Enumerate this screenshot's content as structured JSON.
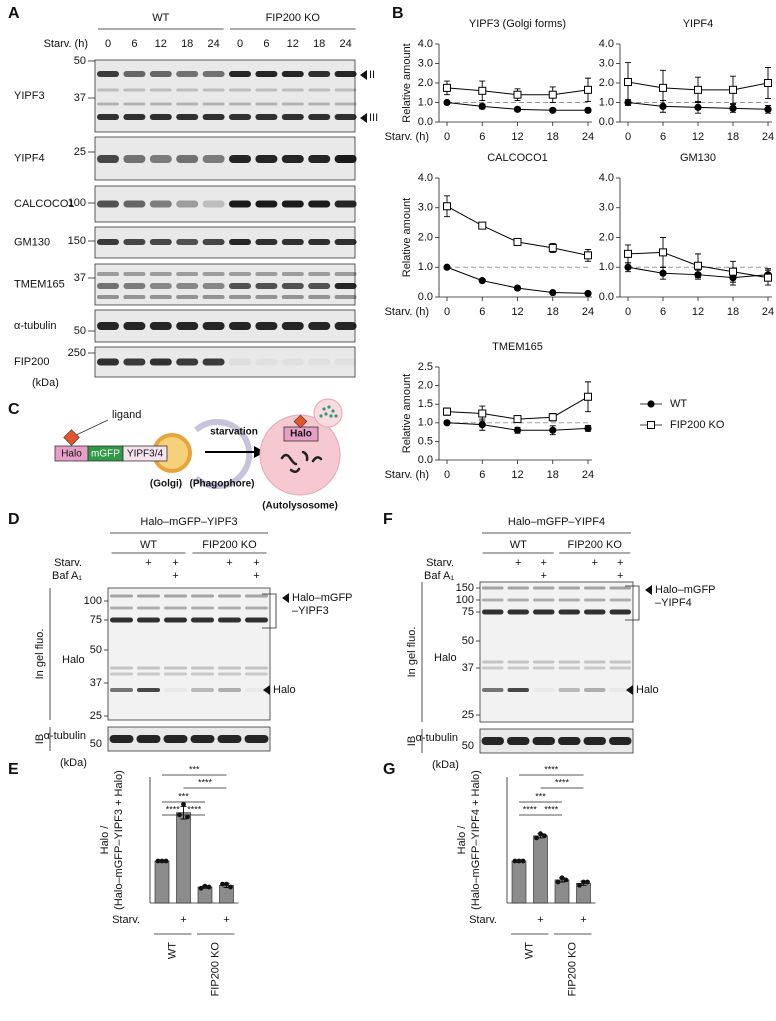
{
  "panel_a": {
    "letter": "A",
    "groups": [
      "WT",
      "FIP200 KO"
    ],
    "starv_label": "Starv. (h)",
    "times": [
      "0",
      "6",
      "12",
      "18",
      "24"
    ],
    "blots": [
      {
        "label": "YIPF3",
        "markers": [
          "50",
          "37"
        ]
      },
      {
        "label": "YIPF4",
        "markers": [
          "25"
        ]
      },
      {
        "label": "CALCOCO1",
        "markers": [
          "100"
        ]
      },
      {
        "label": "GM130",
        "markers": [
          "150"
        ]
      },
      {
        "label": "TMEM165",
        "markers": [
          "37"
        ]
      },
      {
        "label": "α-tubulin",
        "markers": [
          "50"
        ]
      },
      {
        "label": "FIP200",
        "markers": [
          "250"
        ]
      }
    ],
    "arrows": [
      "II",
      "III"
    ],
    "kda": "(kDa)"
  },
  "panel_b": {
    "letter": "B"
  },
  "chart_data": [
    {
      "type": "line",
      "title": "YIPF3 (Golgi forms)",
      "ylabel": "Relative amount",
      "xlabel": "Starv. (h)",
      "x": [
        0,
        6,
        12,
        18,
        24
      ],
      "xlim": [
        0,
        24
      ],
      "xticks": [
        0,
        6,
        12,
        18,
        24
      ],
      "ylim": [
        0,
        4
      ],
      "yticks": [
        {
          "value": 0,
          "label": "0.0"
        },
        {
          "value": 1,
          "label": "1.0"
        },
        {
          "value": 2,
          "label": "2.0"
        },
        {
          "value": 3,
          "label": "3.0"
        },
        {
          "value": 4,
          "label": "4.0"
        }
      ],
      "reference_line": 1,
      "series": [
        {
          "name": "WT",
          "color": "#000000",
          "marker": "filled-circle",
          "values": [
            1.0,
            0.8,
            0.65,
            0.6,
            0.6
          ],
          "errors": [
            0.05,
            0.12,
            0.1,
            0.08,
            0.1
          ]
        },
        {
          "name": "FIP200 KO",
          "color": "#000000",
          "marker": "open-square",
          "values": [
            1.75,
            1.6,
            1.4,
            1.4,
            1.65
          ],
          "errors": [
            0.35,
            0.5,
            0.3,
            0.4,
            0.6
          ]
        }
      ]
    },
    {
      "type": "line",
      "title": "YIPF4",
      "x": [
        0,
        6,
        12,
        18,
        24
      ],
      "xlim": [
        0,
        24
      ],
      "xticks": [
        0,
        6,
        12,
        18,
        24
      ],
      "ylim": [
        0,
        4
      ],
      "yticks": [
        {
          "value": 0,
          "label": "0.0"
        },
        {
          "value": 1,
          "label": "1.0"
        },
        {
          "value": 2,
          "label": "2.0"
        },
        {
          "value": 3,
          "label": "3.0"
        },
        {
          "value": 4,
          "label": "4.0"
        }
      ],
      "reference_line": 1,
      "series": [
        {
          "name": "WT",
          "color": "#000000",
          "marker": "filled-circle",
          "values": [
            1.0,
            0.8,
            0.75,
            0.7,
            0.65
          ],
          "errors": [
            0.15,
            0.3,
            0.3,
            0.2,
            0.2
          ]
        },
        {
          "name": "FIP200 KO",
          "color": "#000000",
          "marker": "open-square",
          "values": [
            2.05,
            1.75,
            1.65,
            1.65,
            2.0
          ],
          "errors": [
            1.0,
            0.9,
            0.65,
            0.7,
            0.8
          ]
        }
      ]
    },
    {
      "type": "line",
      "title": "CALCOCO1",
      "ylabel": "Relative amount",
      "xlabel": "Starv. (h)",
      "x": [
        0,
        6,
        12,
        18,
        24
      ],
      "xlim": [
        0,
        24
      ],
      "xticks": [
        0,
        6,
        12,
        18,
        24
      ],
      "ylim": [
        0,
        4
      ],
      "yticks": [
        {
          "value": 0,
          "label": "0.0"
        },
        {
          "value": 1,
          "label": "1.0"
        },
        {
          "value": 2,
          "label": "2.0"
        },
        {
          "value": 3,
          "label": "3.0"
        },
        {
          "value": 4,
          "label": "4.0"
        }
      ],
      "reference_line": 1,
      "series": [
        {
          "name": "WT",
          "color": "#000000",
          "marker": "filled-circle",
          "values": [
            1.0,
            0.55,
            0.3,
            0.15,
            0.12
          ],
          "errors": [
            0.03,
            0.04,
            0.04,
            0.03,
            0.03
          ]
        },
        {
          "name": "FIP200 KO",
          "color": "#000000",
          "marker": "open-square",
          "values": [
            3.05,
            2.4,
            1.85,
            1.65,
            1.4
          ],
          "errors": [
            0.35,
            0.08,
            0.1,
            0.15,
            0.2
          ]
        }
      ]
    },
    {
      "type": "line",
      "title": "GM130",
      "x": [
        0,
        6,
        12,
        18,
        24
      ],
      "xlim": [
        0,
        24
      ],
      "xticks": [
        0,
        6,
        12,
        18,
        24
      ],
      "ylim": [
        0,
        4
      ],
      "yticks": [
        {
          "value": 0,
          "label": "0.0"
        },
        {
          "value": 1,
          "label": "1.0"
        },
        {
          "value": 2,
          "label": "2.0"
        },
        {
          "value": 3,
          "label": "3.0"
        },
        {
          "value": 4,
          "label": "4.0"
        }
      ],
      "reference_line": 1,
      "series": [
        {
          "name": "WT",
          "color": "#000000",
          "marker": "filled-circle",
          "values": [
            1.0,
            0.8,
            0.75,
            0.65,
            0.75
          ],
          "errors": [
            0.15,
            0.2,
            0.15,
            0.25,
            0.2
          ]
        },
        {
          "name": "FIP200 KO",
          "color": "#000000",
          "marker": "open-square",
          "values": [
            1.45,
            1.5,
            1.05,
            0.85,
            0.65
          ],
          "errors": [
            0.3,
            0.5,
            0.4,
            0.35,
            0.25
          ]
        }
      ]
    },
    {
      "type": "line",
      "title": "TMEM165",
      "ylabel": "Relative amount",
      "xlabel": "Starv. (h)",
      "x": [
        0,
        6,
        12,
        18,
        24
      ],
      "xlim": [
        0,
        24
      ],
      "xticks": [
        0,
        6,
        12,
        18,
        24
      ],
      "ylim": [
        0,
        2.5
      ],
      "yticks": [
        {
          "value": 0,
          "label": "0.0"
        },
        {
          "value": 0.5,
          "label": "0.5"
        },
        {
          "value": 1,
          "label": "1.0"
        },
        {
          "value": 1.5,
          "label": "1.5"
        },
        {
          "value": 2,
          "label": "2.0"
        },
        {
          "value": 2.5,
          "label": "2.5"
        }
      ],
      "reference_line": 1,
      "legend": "right",
      "series": [
        {
          "name": "WT",
          "color": "#000000",
          "marker": "filled-circle",
          "values": [
            1.0,
            0.95,
            0.8,
            0.8,
            0.85
          ],
          "errors": [
            0.05,
            0.15,
            0.08,
            0.12,
            0.08
          ]
        },
        {
          "name": "FIP200 KO",
          "color": "#000000",
          "marker": "open-square",
          "values": [
            1.3,
            1.25,
            1.1,
            1.15,
            1.7
          ],
          "errors": [
            0.1,
            0.2,
            0.08,
            0.1,
            0.4
          ]
        }
      ]
    },
    {
      "type": "bar",
      "ylabel": [
        "Halo /",
        "(Halo–mGFP–YIPF3 + Halo)"
      ],
      "color": "#8c8c8c",
      "ylim": [
        0,
        3
      ],
      "values": [
        1.0,
        2.15,
        0.38,
        0.42
      ],
      "errors": [
        0.02,
        0.15,
        0.03,
        0.05
      ],
      "points": [
        [
          1.0,
          1.0,
          1.0
        ],
        [
          2.1,
          2.35,
          2.05
        ],
        [
          0.35,
          0.4,
          0.38
        ],
        [
          0.45,
          0.45,
          0.38
        ]
      ],
      "x_row_label": "Starv.",
      "x_row": [
        null,
        "+",
        null,
        "+"
      ],
      "groups": [
        "WT",
        "FIP200 KO"
      ],
      "significance": [
        {
          "from": 0,
          "to": 3,
          "label": "***"
        },
        {
          "from": 1,
          "to": 3,
          "label": "****"
        },
        {
          "from": 0,
          "to": 2,
          "label": "***"
        },
        {
          "from": 0,
          "to": 1,
          "label": "****"
        },
        {
          "from": 1,
          "to": 2,
          "label": "****"
        }
      ]
    },
    {
      "type": "bar",
      "ylabel": [
        "Halo /",
        "(Halo–mGFP–YIPF4 + Halo)"
      ],
      "color": "#8c8c8c",
      "ylim": [
        0,
        3
      ],
      "values": [
        1.0,
        1.6,
        0.55,
        0.47
      ],
      "errors": [
        0.02,
        0.05,
        0.05,
        0.05
      ],
      "points": [
        [
          1.0,
          1.0,
          1.0
        ],
        [
          1.55,
          1.65,
          1.6
        ],
        [
          0.5,
          0.6,
          0.55
        ],
        [
          0.42,
          0.5,
          0.5
        ]
      ],
      "x_row_label": "Starv.",
      "x_row": [
        null,
        "+",
        null,
        "+"
      ],
      "groups": [
        "WT",
        "FIP200 KO"
      ],
      "significance": [
        {
          "from": 0,
          "to": 3,
          "label": "****"
        },
        {
          "from": 1,
          "to": 3,
          "label": "****"
        },
        {
          "from": 0,
          "to": 2,
          "label": "***"
        },
        {
          "from": 0,
          "to": 1,
          "label": "****"
        },
        {
          "from": 1,
          "to": 2,
          "label": "****"
        }
      ]
    }
  ],
  "panel_c": {
    "letter": "C",
    "ligand": "ligand",
    "construct": [
      "Halo",
      "mGFP",
      "YIPF3/4"
    ],
    "golgi": "(Golgi)",
    "phagophore": "(Phagophore)",
    "arrow": "starvation",
    "inner": "Halo",
    "autolysosome": "(Autolysosome)"
  },
  "panel_d": {
    "letter": "D",
    "title": "Halo–mGFP–YIPF3",
    "groups": [
      "WT",
      "FIP200 KO"
    ],
    "rows": [
      {
        "label": "Starv.",
        "marks": [
          null,
          "+",
          "+",
          null,
          "+",
          "+"
        ]
      },
      {
        "label": "Baf A₁",
        "marks": [
          null,
          null,
          "+",
          null,
          null,
          "+"
        ]
      }
    ],
    "fluo_label": "In gel fluo.",
    "probe": "Halo",
    "markers": [
      "100",
      "75",
      "50",
      "37",
      "25"
    ],
    "ib_label": "IB",
    "ib_probe": "α-tubulin",
    "ib_marker": "50",
    "kda": "(kDa)",
    "fusion_label": [
      "Halo–mGFP",
      "–YIPF3"
    ],
    "free_label": "Halo"
  },
  "panel_e": {
    "letter": "E"
  },
  "panel_f": {
    "letter": "F",
    "title": "Halo–mGFP–YIPF4",
    "groups": [
      "WT",
      "FIP200 KO"
    ],
    "rows": [
      {
        "label": "Starv.",
        "marks": [
          null,
          "+",
          "+",
          null,
          "+",
          "+"
        ]
      },
      {
        "label": "Baf A₁",
        "marks": [
          null,
          null,
          "+",
          null,
          null,
          "+"
        ]
      }
    ],
    "fluo_label": "In gel fluo.",
    "probe": "Halo",
    "markers": [
      "150",
      "100",
      "75",
      "50",
      "37",
      "25"
    ],
    "ib_label": "IB",
    "ib_probe": "α-tubulin",
    "ib_marker": "50",
    "kda": "(kDa)",
    "fusion_label": [
      "Halo–mGFP",
      "–YIPF4"
    ],
    "free_label": "Halo"
  },
  "panel_g": {
    "letter": "G"
  }
}
